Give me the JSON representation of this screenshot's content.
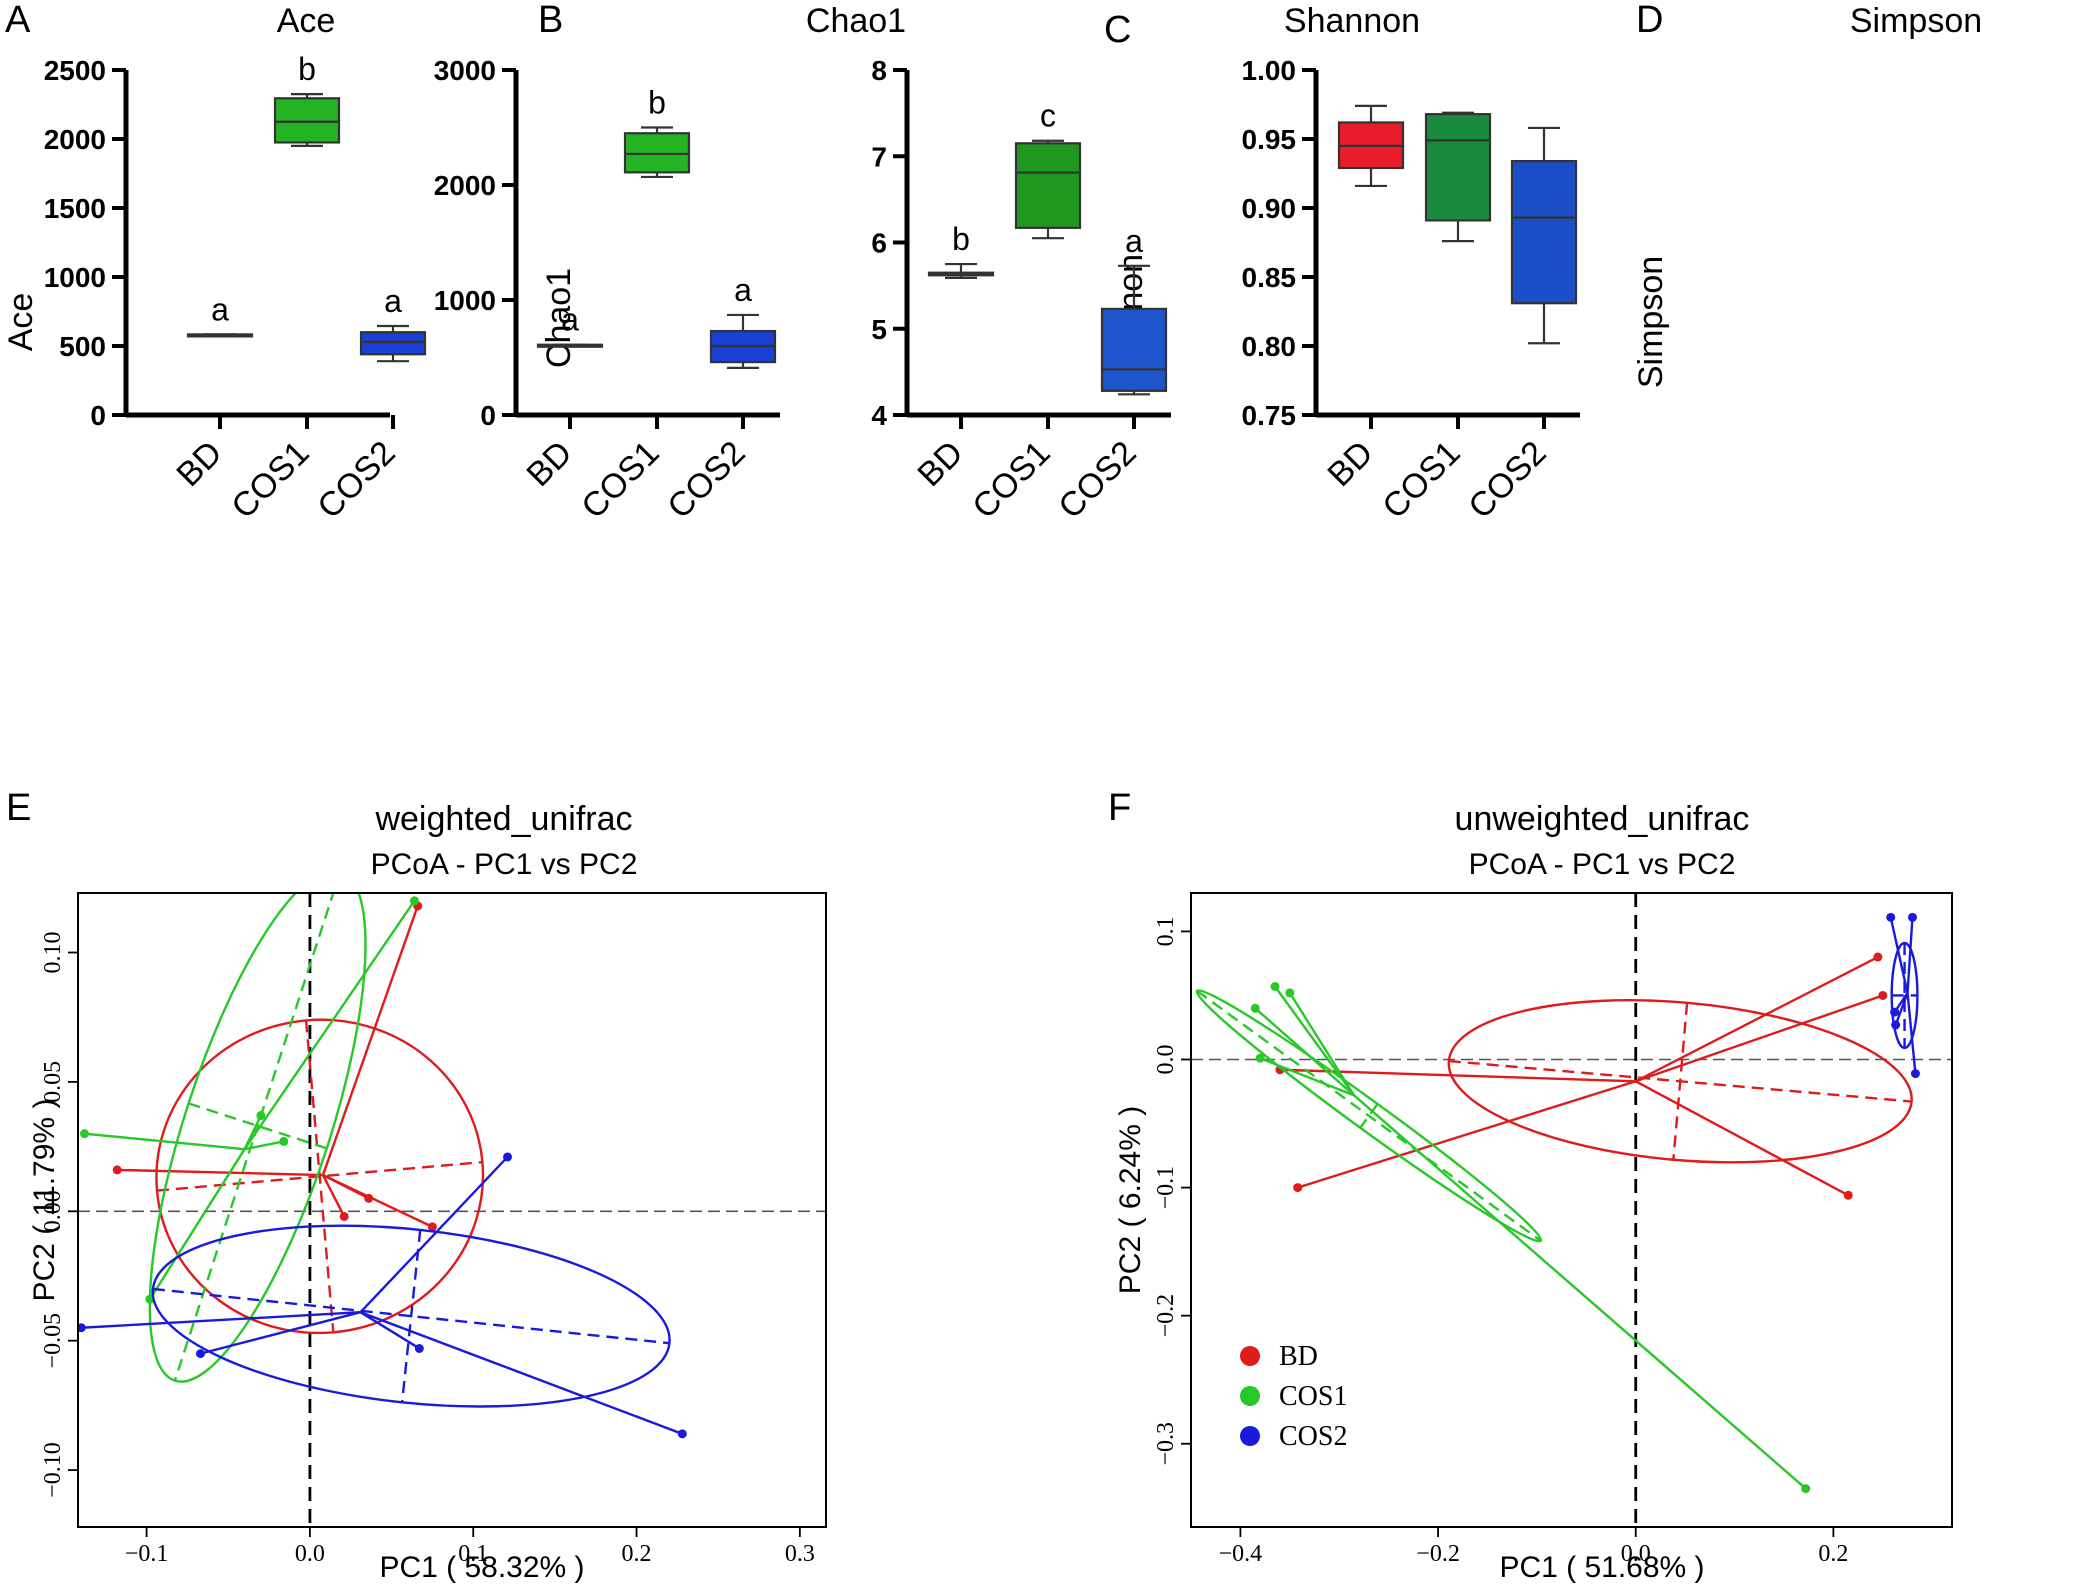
{
  "chart_data": [
    {
      "id": "A",
      "type": "box",
      "panel_label": "A",
      "title": "Ace",
      "ylabel": "Ace",
      "ylim": [
        0,
        2500
      ],
      "yticks": [
        0,
        500,
        1000,
        1500,
        2000,
        2500
      ],
      "yticklabels": [
        "0",
        "500",
        "1000",
        "1500",
        "2000",
        "2500"
      ],
      "categories": [
        "BD",
        "COS1",
        "COS2"
      ],
      "colors": [
        "#e0202f",
        "#23b323",
        "#1a3fd4"
      ],
      "boxes": [
        {
          "min": 580,
          "q1": 580,
          "median": 582,
          "q3": 584,
          "max": 584
        },
        {
          "min": 1950,
          "q1": 1975,
          "median": 2125,
          "q3": 2295,
          "max": 2325
        },
        {
          "min": 390,
          "q1": 440,
          "median": 530,
          "q3": 600,
          "max": 645
        }
      ],
      "letters": [
        "a",
        "b",
        "a"
      ]
    },
    {
      "id": "B",
      "type": "box",
      "panel_label": "B",
      "title": "Chao1",
      "ylabel": "Chao1",
      "ylim": [
        0,
        3000
      ],
      "yticks": [
        0,
        1000,
        2000,
        3000
      ],
      "yticklabels": [
        "0",
        "1000",
        "2000",
        "3000"
      ],
      "categories": [
        "BD",
        "COS1",
        "COS2"
      ],
      "colors": [
        "#e0202f",
        "#23b323",
        "#1a3fd4"
      ],
      "boxes": [
        {
          "min": 605,
          "q1": 605,
          "median": 608,
          "q3": 611,
          "max": 611
        },
        {
          "min": 2070,
          "q1": 2110,
          "median": 2270,
          "q3": 2450,
          "max": 2500
        },
        {
          "min": 410,
          "q1": 460,
          "median": 600,
          "q3": 730,
          "max": 870
        }
      ],
      "letters": [
        "a",
        "b",
        "a"
      ]
    },
    {
      "id": "C",
      "type": "box",
      "panel_label": "C",
      "title": "Shannon",
      "ylabel": "Shannon",
      "ylim": [
        4,
        8
      ],
      "yticks": [
        4,
        5,
        6,
        7,
        8
      ],
      "yticklabels": [
        "4",
        "5",
        "6",
        "7",
        "8"
      ],
      "categories": [
        "BD",
        "COS1",
        "COS2"
      ],
      "colors": [
        "#e0202f",
        "#1f961f",
        "#1f55cc"
      ],
      "boxes": [
        {
          "min": 5.59,
          "q1": 5.62,
          "median": 5.63,
          "q3": 5.65,
          "max": 5.75
        },
        {
          "min": 6.05,
          "q1": 6.17,
          "median": 6.81,
          "q3": 7.15,
          "max": 7.18
        },
        {
          "min": 4.24,
          "q1": 4.28,
          "median": 4.53,
          "q3": 5.23,
          "max": 5.73
        }
      ],
      "letters": [
        "b",
        "c",
        "a"
      ]
    },
    {
      "id": "D",
      "type": "box",
      "panel_label": "D",
      "title": "Simpson",
      "ylabel": "Simpson",
      "ylim": [
        0.75,
        1.0
      ],
      "yticks": [
        0.75,
        0.8,
        0.85,
        0.9,
        0.95,
        1.0
      ],
      "yticklabels": [
        "0.75",
        "0.80",
        "0.85",
        "0.90",
        "0.95",
        "1.00"
      ],
      "categories": [
        "BD",
        "COS1",
        "COS2"
      ],
      "colors": [
        "#ea1c2c",
        "#1a8a3e",
        "#1a4fc8"
      ],
      "boxes": [
        {
          "min": 0.916,
          "q1": 0.929,
          "median": 0.945,
          "q3": 0.962,
          "max": 0.974
        },
        {
          "min": 0.876,
          "q1": 0.891,
          "median": 0.949,
          "q3": 0.968,
          "max": 0.969
        },
        {
          "min": 0.802,
          "q1": 0.831,
          "median": 0.893,
          "q3": 0.934,
          "max": 0.958
        }
      ],
      "letters": []
    },
    {
      "id": "E",
      "type": "scatter",
      "panel_label": "E",
      "title": "weighted_unifrac",
      "subtitle": "PCoA - PC1 vs PC2",
      "xlabel": "PC1 ( 58.32% )",
      "ylabel": "PC2 ( 11.79% )",
      "xlim": [
        -0.142,
        0.316
      ],
      "ylim": [
        -0.122,
        0.123
      ],
      "xticks": [
        -0.1,
        0.0,
        0.1,
        0.2,
        0.3
      ],
      "xticklabels": [
        "−0.1",
        "0.0",
        "0.1",
        "0.2",
        "0.3"
      ],
      "yticks": [
        -0.1,
        -0.05,
        0.0,
        0.05,
        0.1
      ],
      "yticklabels": [
        "−0.10",
        "−0.05",
        "0.00",
        "0.05",
        "0.10"
      ],
      "groups": [
        {
          "name": "BD",
          "color": "#e01b1b",
          "centroid": [
            0.008,
            0.014
          ],
          "points": [
            [
              0.066,
              0.118
            ],
            [
              0.036,
              0.005
            ],
            [
              0.021,
              -0.002
            ],
            [
              0.075,
              -0.006
            ],
            [
              -0.118,
              0.016
            ]
          ],
          "ellipse": {
            "cx": 0.006,
            "cy": 0.0135,
            "rx": 0.1,
            "ry": 0.0605,
            "angle": -5
          }
        },
        {
          "name": "COS1",
          "color": "#28c828",
          "centroid": [
            -0.04,
            0.024
          ],
          "points": [
            [
              -0.138,
              0.03
            ],
            [
              -0.03,
              0.037
            ],
            [
              -0.016,
              0.027
            ],
            [
              0.064,
              0.12
            ],
            [
              -0.098,
              -0.034
            ]
          ],
          "ellipse": {
            "cx": -0.032,
            "cy": 0.033,
            "rx": 0.0445,
            "ry": 0.1035,
            "angle": 18
          }
        },
        {
          "name": "COS2",
          "color": "#1a1adc",
          "centroid": [
            0.031,
            -0.039
          ],
          "points": [
            [
              -0.14,
              -0.045
            ],
            [
              -0.067,
              -0.055
            ],
            [
              0.067,
              -0.053
            ],
            [
              0.121,
              0.021
            ],
            [
              0.228,
              -0.086
            ]
          ],
          "ellipse": {
            "cx": 0.062,
            "cy": -0.0405,
            "rx": 0.159,
            "ry": 0.0335,
            "angle": 6
          }
        }
      ]
    },
    {
      "id": "F",
      "type": "scatter",
      "panel_label": "F",
      "title": "unweighted_unifrac",
      "subtitle": "PCoA - PC1 vs PC2",
      "xlabel": "PC1 ( 51.68% )",
      "ylabel": "PC2 ( 6.24% )",
      "xlim": [
        -0.45,
        0.32
      ],
      "ylim": [
        -0.365,
        0.13
      ],
      "xticks": [
        -0.4,
        -0.2,
        0.0,
        0.2
      ],
      "xticklabels": [
        "−0.4",
        "−0.2",
        "0.0",
        "0.2"
      ],
      "yticks": [
        -0.3,
        -0.2,
        -0.1,
        0.0,
        0.1
      ],
      "yticklabels": [
        "−0.3",
        "−0.2",
        "−0.1",
        "0.0",
        "0.1"
      ],
      "legend": [
        "BD",
        "COS1",
        "COS2"
      ],
      "groups": [
        {
          "name": "BD",
          "color": "#e01b1b",
          "centroid": [
            0.0,
            -0.017
          ],
          "points": [
            [
              0.245,
              0.08
            ],
            [
              0.25,
              0.05
            ],
            [
              -0.36,
              -0.008
            ],
            [
              -0.342,
              -0.1
            ],
            [
              0.215,
              -0.106
            ]
          ],
          "ellipse": {
            "cx": 0.045,
            "cy": -0.017,
            "rx": 0.235,
            "ry": 0.0615,
            "angle": 5
          }
        },
        {
          "name": "COS1",
          "color": "#28c828",
          "centroid": [
            -0.285,
            -0.028
          ],
          "points": [
            [
              -0.365,
              0.057
            ],
            [
              -0.35,
              0.052
            ],
            [
              -0.385,
              0.04
            ],
            [
              -0.38,
              0.001
            ],
            [
              0.172,
              -0.335
            ]
          ],
          "ellipse": {
            "cx": -0.27,
            "cy": -0.044,
            "rx": 0.215,
            "ry": 0.0115,
            "angle": 36
          }
        },
        {
          "name": "COS2",
          "color": "#1a1adc",
          "centroid": [
            0.275,
            0.052
          ],
          "points": [
            [
              0.258,
              0.111
            ],
            [
              0.28,
              0.111
            ],
            [
              0.262,
              0.037
            ],
            [
              0.263,
              0.027
            ],
            [
              0.283,
              -0.011
            ]
          ],
          "ellipse": {
            "cx": 0.272,
            "cy": 0.05,
            "rx": 0.013,
            "ry": 0.041,
            "angle": 0
          }
        }
      ]
    }
  ]
}
